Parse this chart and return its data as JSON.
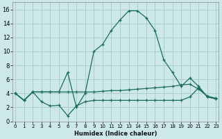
{
  "xlabel": "Humidex (Indice chaleur)",
  "background_color": "#cce8e8",
  "grid_color": "#aacccc",
  "line_color": "#1a6b5a",
  "x_ticks": [
    0,
    1,
    2,
    3,
    4,
    5,
    6,
    7,
    8,
    9,
    10,
    11,
    12,
    13,
    14,
    15,
    16,
    17,
    18,
    19,
    20,
    21,
    22,
    23
  ],
  "y_ticks": [
    0,
    2,
    4,
    6,
    8,
    10,
    12,
    14,
    16
  ],
  "xlim": [
    -0.3,
    23.3
  ],
  "ylim": [
    0,
    17
  ],
  "series": [
    {
      "x": [
        0,
        1,
        2,
        3,
        4,
        5,
        6,
        7,
        8,
        9,
        10,
        11,
        12,
        13,
        14,
        15,
        16,
        17,
        18,
        19,
        20,
        21,
        22,
        23
      ],
      "y": [
        4.0,
        3.0,
        4.2,
        4.2,
        4.2,
        4.2,
        7.0,
        2.0,
        4.0,
        10.0,
        11.0,
        13.0,
        14.5,
        15.8,
        15.8,
        14.8,
        13.0,
        8.8,
        7.0,
        5.0,
        6.2,
        5.0,
        3.5,
        3.2
      ]
    },
    {
      "x": [
        0,
        1,
        2,
        3,
        4,
        5,
        6,
        7,
        8,
        9,
        10,
        11,
        12,
        13,
        14,
        15,
        16,
        17,
        18,
        19,
        20,
        21,
        22,
        23
      ],
      "y": [
        4.0,
        3.0,
        4.2,
        4.2,
        4.2,
        4.2,
        4.2,
        4.2,
        4.2,
        4.2,
        4.3,
        4.4,
        4.4,
        4.5,
        4.6,
        4.7,
        4.8,
        4.9,
        5.0,
        5.2,
        5.3,
        4.6,
        3.6,
        3.3
      ]
    },
    {
      "x": [
        0,
        1,
        2,
        3,
        4,
        5,
        6,
        7,
        8,
        9,
        10,
        11,
        12,
        13,
        14,
        15,
        16,
        17,
        18,
        19,
        20,
        21,
        22,
        23
      ],
      "y": [
        4.0,
        3.0,
        4.2,
        2.8,
        2.2,
        2.3,
        0.8,
        2.2,
        2.8,
        3.0,
        3.0,
        3.0,
        3.0,
        3.0,
        3.0,
        3.0,
        3.0,
        3.0,
        3.0,
        3.0,
        3.5,
        4.8,
        3.5,
        3.2
      ]
    }
  ]
}
